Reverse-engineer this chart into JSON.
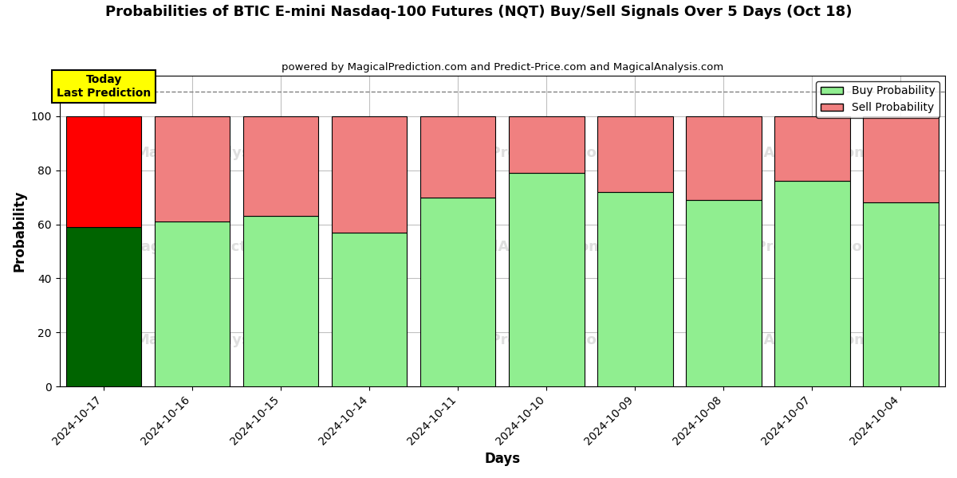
{
  "title": "Probabilities of BTIC E-mini Nasdaq-100 Futures (NQT) Buy/Sell Signals Over 5 Days (Oct 18)",
  "subtitle": "powered by MagicalPrediction.com and Predict-Price.com and MagicalAnalysis.com",
  "xlabel": "Days",
  "ylabel": "Probability",
  "dates": [
    "2024-10-17",
    "2024-10-16",
    "2024-10-15",
    "2024-10-14",
    "2024-10-11",
    "2024-10-10",
    "2024-10-09",
    "2024-10-08",
    "2024-10-07",
    "2024-10-04"
  ],
  "buy_values": [
    59,
    61,
    63,
    57,
    70,
    79,
    72,
    69,
    76,
    68
  ],
  "sell_values": [
    41,
    39,
    37,
    43,
    30,
    21,
    28,
    31,
    24,
    32
  ],
  "today_buy_color": "#006400",
  "today_sell_color": "#FF0000",
  "other_buy_color": "#90EE90",
  "other_sell_color": "#F08080",
  "today_annotation_bg": "#FFFF00",
  "today_annotation_text": "Today\nLast Prediction",
  "legend_buy_label": "Buy Probability",
  "legend_sell_label": "Sell Probability",
  "ylim": [
    0,
    115
  ],
  "dashed_line_y": 109,
  "watermark_texts": [
    "MagicalAnalysis.com",
    "MagicalPrediction.com"
  ],
  "bar_edgecolor": "black",
  "bar_linewidth": 0.8,
  "bar_width": 0.85,
  "grid_color": "#C0C0C0",
  "background_color": "#FFFFFF",
  "figsize": [
    12,
    6
  ],
  "dpi": 100
}
